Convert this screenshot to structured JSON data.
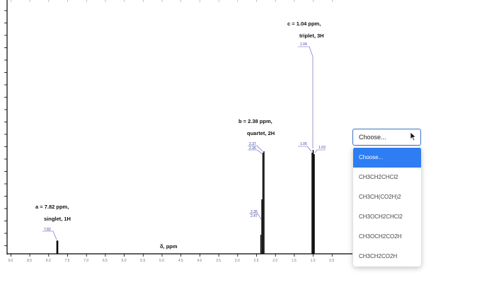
{
  "spectrum": {
    "xlabel": "δ, ppm",
    "x_ticks": [
      "9.0",
      "8.5",
      "8.0",
      "7.5",
      "7.0",
      "6.5",
      "6.0",
      "5.5",
      "5.0",
      "4.5",
      "4.0",
      "3.5",
      "3.0",
      "2.5",
      "2.0",
      "1.5",
      "1.0",
      "0.5"
    ],
    "peaks": [
      {
        "id": "a",
        "line1": "a = 7.82 ppm,",
        "line2": "singlet, 1H",
        "labels": [
          "7.82"
        ]
      },
      {
        "id": "b",
        "line1": "b = 2.38 ppm,",
        "line2": "quartet, 2H",
        "labels": [
          "2.37",
          "2.36",
          "2.35",
          "2.47"
        ]
      },
      {
        "id": "c",
        "line1": "c = 1.04 ppm,",
        "line2": "triplet, 3H",
        "labels": [
          "1.04",
          "1.05",
          "1.03"
        ]
      }
    ]
  },
  "dropdown": {
    "selected": "Choose...",
    "options": [
      "Choose...",
      "CH3CH2CHCl2",
      "CH3CH(CO2H)2",
      "CH3OCH2CHCl2",
      "CH3OCH2CO2H",
      "CH3CH2CO2H"
    ]
  },
  "colors": {
    "accent": "#2e7df2",
    "select_border": "#3b73c8",
    "peak_label": "#3a3aa8",
    "spectrum_line": "#000000"
  }
}
